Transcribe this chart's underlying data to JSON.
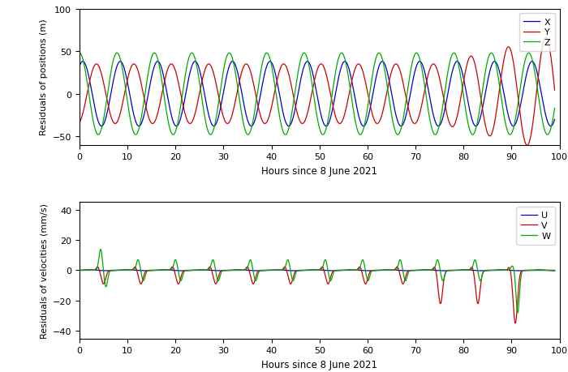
{
  "top_panel": {
    "ylabel": "Residuals of positions (m)",
    "xlabel": "Hours since 8 June 2021",
    "ylim": [
      -60,
      100
    ],
    "xlim": [
      0,
      100
    ],
    "yticks": [
      -50,
      0,
      50,
      100
    ],
    "xticks": [
      0,
      10,
      20,
      30,
      40,
      50,
      60,
      70,
      80,
      90,
      100
    ],
    "legend": [
      "X",
      "Y",
      "Z"
    ],
    "colors": [
      "#0000cc",
      "#cc0000",
      "#00aa00"
    ]
  },
  "bottom_panel": {
    "ylabel": "Residuals of velocities (mm/s)",
    "xlabel": "Hours since 8 June 2021",
    "ylim": [
      -45,
      45
    ],
    "xlim": [
      0,
      100
    ],
    "yticks": [
      -40,
      -20,
      0,
      20,
      40
    ],
    "xticks": [
      0,
      10,
      20,
      30,
      40,
      50,
      60,
      70,
      80,
      90,
      100
    ],
    "legend": [
      "U",
      "V",
      "W"
    ],
    "colors": [
      "#0000cc",
      "#cc0000",
      "#00aa00"
    ]
  },
  "period": 7.8,
  "figsize": [
    7.0,
    4.6
  ],
  "dpi": 100
}
